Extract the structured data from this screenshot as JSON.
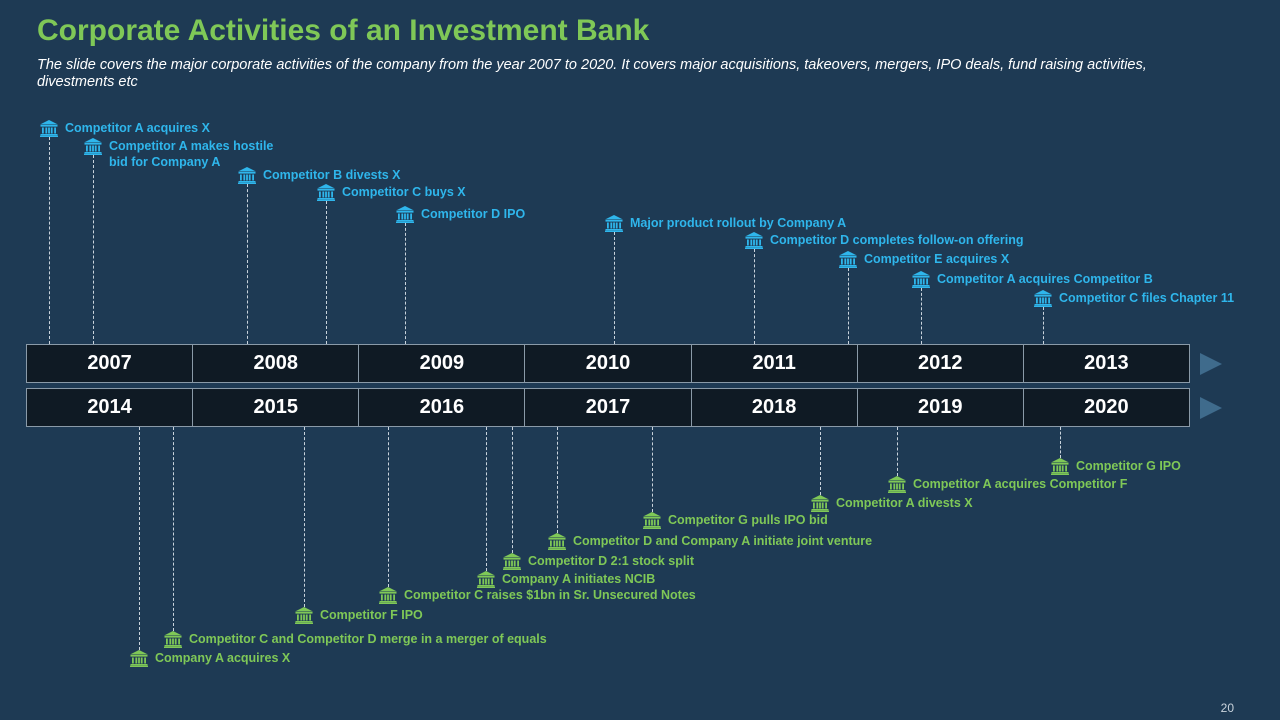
{
  "header": {
    "title": "Corporate Activities of an Investment Bank",
    "subtitle": "The slide covers the major corporate activities of the company from the year 2007 to 2020. It covers major acquisitions, takeovers, mergers, IPO deals, fund raising activities, divestments etc"
  },
  "colors": {
    "background": "#1e3a54",
    "title": "#7fc857",
    "top_events": "#2fb6ec",
    "bottom_events": "#7fc857",
    "year_cell": "#0f1a24"
  },
  "timeline": {
    "row1_years": [
      "2007",
      "2008",
      "2009",
      "2010",
      "2011",
      "2012",
      "2013"
    ],
    "row2_years": [
      "2014",
      "2015",
      "2016",
      "2017",
      "2018",
      "2019",
      "2020"
    ]
  },
  "top_events": [
    {
      "label": "Competitor A acquires X",
      "icon": "bank-icon"
    },
    {
      "label": "Competitor A makes hostile\nbid for Company A",
      "icon": "bank-icon"
    },
    {
      "label": "Competitor B divests X",
      "icon": "bank-icon"
    },
    {
      "label": "Competitor C buys X",
      "icon": "bank-icon"
    },
    {
      "label": "Competitor D IPO",
      "icon": "bank-icon"
    },
    {
      "label": "Major product rollout by Company A",
      "icon": "bank-icon"
    },
    {
      "label": "Competitor D completes follow-on offering",
      "icon": "bank-icon"
    },
    {
      "label": "Competitor E acquires X",
      "icon": "bank-icon"
    },
    {
      "label": "Competitor A acquires Competitor B",
      "icon": "bank-icon"
    },
    {
      "label": "Competitor C files Chapter 11",
      "icon": "bank-icon"
    }
  ],
  "bottom_events": [
    {
      "label": "Company A acquires X",
      "icon": "bank-icon"
    },
    {
      "label": "Competitor C and Competitor D merge in a merger of equals",
      "icon": "bank-icon"
    },
    {
      "label": "Competitor F IPO",
      "icon": "bank-icon"
    },
    {
      "label": "Competitor C raises $1bn in Sr. Unsecured Notes",
      "icon": "bank-icon"
    },
    {
      "label": "Company A initiates NCIB",
      "icon": "bank-icon"
    },
    {
      "label": "Competitor D 2:1 stock split",
      "icon": "bank-icon"
    },
    {
      "label": "Competitor D and Company A initiate joint venture",
      "icon": "bank-icon"
    },
    {
      "label": "Competitor G pulls IPO bid",
      "icon": "bank-icon"
    },
    {
      "label": "Competitor A divests X",
      "icon": "bank-icon"
    },
    {
      "label": "Competitor A acquires Competitor F",
      "icon": "bank-icon"
    },
    {
      "label": "Competitor G IPO",
      "icon": "bank-icon"
    }
  ],
  "footer": {
    "page_number": "20"
  }
}
